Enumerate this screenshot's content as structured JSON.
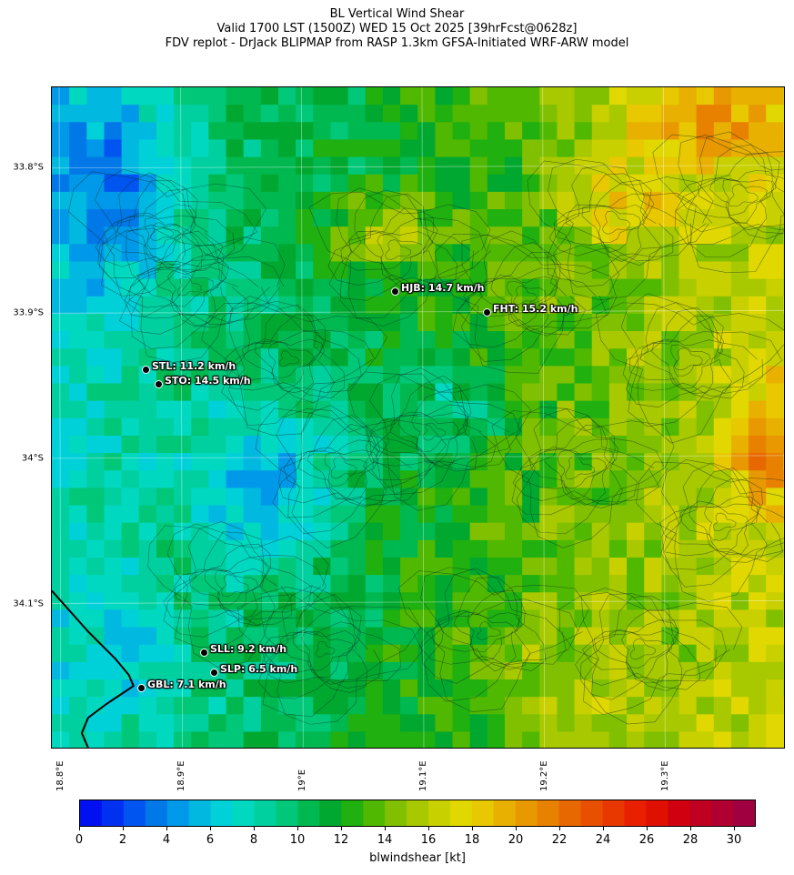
{
  "header": {
    "line1": "BL Vertical Wind Shear",
    "line2": "Valid 1700 LST (1500Z) WED 15 Oct 2025 [39hrFcst@0628z]",
    "line3": "FDV replot - DrJack BLIPMAP from RASP 1.3km GFSA-Initiated WRF-ARW model"
  },
  "axes": {
    "lat_labels": [
      "33.8°S",
      "33.9°S",
      "34°S",
      "34.1°S"
    ],
    "lon_labels": [
      "18.8°E",
      "18.9°E",
      "19°E",
      "19.1°E",
      "19.2°E",
      "19.3°E"
    ]
  },
  "stations": [
    {
      "code": "HJB",
      "label": "HJB: 14.7 km/h",
      "value_kmh": 14.7
    },
    {
      "code": "FHT",
      "label": "FHT: 15.2 km/h",
      "value_kmh": 15.2
    },
    {
      "code": "STL",
      "label": "STL: 11.2 km/h",
      "value_kmh": 11.2
    },
    {
      "code": "STO",
      "label": "STO: 14.5 km/h",
      "value_kmh": 14.5
    },
    {
      "code": "SLL",
      "label": "SLL: 9.2 km/h",
      "value_kmh": 9.2
    },
    {
      "code": "SLP",
      "label": "SLP: 6.5 km/h",
      "value_kmh": 6.5
    },
    {
      "code": "GBL",
      "label": "GBL: 7.1 km/h",
      "value_kmh": 7.1
    }
  ],
  "colorbar": {
    "label": "blwindshear [kt]",
    "ticks": [
      "0",
      "2",
      "4",
      "6",
      "8",
      "10",
      "12",
      "14",
      "16",
      "18",
      "20",
      "22",
      "24",
      "26",
      "28",
      "30"
    ],
    "colors": [
      "#0010f0",
      "#0030f0",
      "#0055f0",
      "#0078e8",
      "#0098e8",
      "#00b8e0",
      "#00d0d8",
      "#00d8c0",
      "#00d0a0",
      "#00c878",
      "#00b850",
      "#00a830",
      "#20b010",
      "#50b800",
      "#80c000",
      "#a8c800",
      "#c8d000",
      "#e0d800",
      "#e8c800",
      "#e8b000",
      "#e89800",
      "#e88000",
      "#e86800",
      "#e85000",
      "#e83800",
      "#e82000",
      "#e01000",
      "#d00010",
      "#c00020",
      "#b00030",
      "#a00040"
    ],
    "range": [
      0,
      31
    ]
  },
  "map_colors": {
    "coast": "#000000",
    "contour": "#1a3a2a"
  }
}
